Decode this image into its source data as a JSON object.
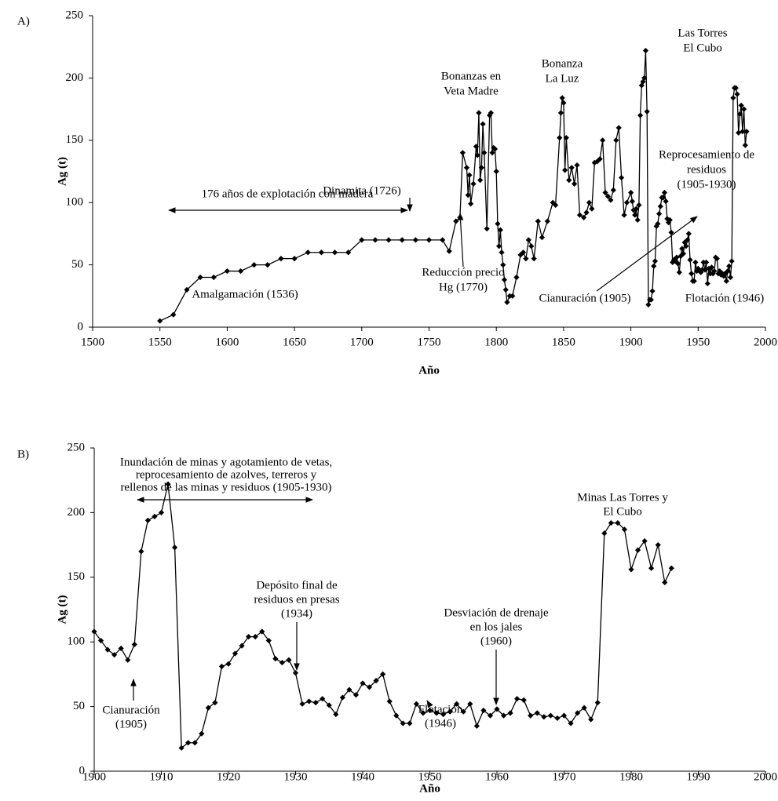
{
  "chart_data": [
    {
      "type": "line",
      "panel_label": "A)",
      "marker": "diamond",
      "color": "#000000",
      "xlabel": "Año",
      "ylabel": "Ag (t)",
      "xlim": [
        1500,
        2000
      ],
      "ylim": [
        0,
        250
      ],
      "xticks": [
        1500,
        1550,
        1600,
        1650,
        1700,
        1750,
        1800,
        1850,
        1900,
        1950,
        2000
      ],
      "yticks": [
        0,
        50,
        100,
        150,
        200,
        250
      ],
      "x": [
        1550,
        1560,
        1570,
        1580,
        1590,
        1600,
        1610,
        1620,
        1630,
        1640,
        1650,
        1660,
        1670,
        1680,
        1690,
        1700,
        1710,
        1720,
        1730,
        1740,
        1750,
        1760,
        1765,
        1770,
        1773,
        1775,
        1778,
        1779,
        1780,
        1781,
        1783,
        1785,
        1786,
        1787,
        1788,
        1789,
        1790,
        1791,
        1793,
        1795,
        1796,
        1797,
        1798,
        1799,
        1800,
        1801,
        1802,
        1803,
        1804,
        1805,
        1806,
        1807,
        1808,
        1810,
        1812,
        1815,
        1818,
        1820,
        1822,
        1824,
        1826,
        1828,
        1831,
        1834,
        1838,
        1842,
        1844,
        1847,
        1848,
        1849,
        1850,
        1851,
        1852,
        1854,
        1856,
        1858,
        1860,
        1862,
        1865,
        1867,
        1869,
        1871,
        1873,
        1875,
        1877,
        1879,
        1881,
        1883,
        1885,
        1887,
        1889,
        1891,
        1893,
        1895,
        1897,
        1900,
        1901,
        1902,
        1903,
        1904,
        1905,
        1906,
        1907,
        1908,
        1909,
        1910,
        1911,
        1912,
        1913,
        1914,
        1915,
        1916,
        1917,
        1918,
        1919,
        1920,
        1921,
        1922,
        1923,
        1924,
        1925,
        1926,
        1927,
        1928,
        1929,
        1930,
        1931,
        1932,
        1933,
        1934,
        1935,
        1936,
        1937,
        1938,
        1939,
        1940,
        1941,
        1942,
        1943,
        1944,
        1945,
        1946,
        1947,
        1948,
        1949,
        1950,
        1951,
        1952,
        1953,
        1954,
        1955,
        1956,
        1957,
        1958,
        1959,
        1960,
        1961,
        1962,
        1963,
        1964,
        1965,
        1966,
        1967,
        1968,
        1969,
        1970,
        1971,
        1972,
        1973,
        1974,
        1975,
        1976,
        1977,
        1978,
        1979,
        1980,
        1981,
        1982,
        1983,
        1984,
        1985,
        1986
      ],
      "values": [
        5,
        10,
        30,
        40,
        40,
        45,
        45,
        50,
        50,
        55,
        55,
        60,
        60,
        60,
        60,
        70,
        70,
        70,
        70,
        70,
        70,
        70,
        61,
        85,
        88,
        140,
        128,
        106,
        122,
        99,
        115,
        145,
        138,
        172,
        118,
        128,
        163,
        140,
        79,
        170,
        172,
        140,
        144,
        143,
        125,
        83,
        65,
        78,
        60,
        50,
        38,
        30,
        20,
        25,
        25,
        40,
        58,
        60,
        55,
        70,
        65,
        55,
        85,
        72,
        85,
        100,
        98,
        152,
        172,
        184,
        180,
        126,
        152,
        118,
        128,
        115,
        130,
        90,
        88,
        92,
        100,
        95,
        132,
        133,
        135,
        150,
        108,
        105,
        102,
        110,
        150,
        160,
        120,
        90,
        100,
        108,
        101,
        94,
        90,
        95,
        86,
        98,
        170,
        194,
        197,
        200,
        222,
        173,
        18,
        22,
        22,
        29,
        49,
        53,
        81,
        83,
        91,
        97,
        104,
        104,
        108,
        101,
        87,
        84,
        86,
        76,
        52,
        54,
        53,
        56,
        51,
        44,
        57,
        63,
        59,
        68,
        65,
        70,
        75,
        54,
        43,
        37,
        37,
        52,
        45,
        47,
        45,
        44,
        46,
        52,
        46,
        52,
        35,
        47,
        43,
        48,
        43,
        45,
        56,
        55,
        43,
        45,
        42,
        43,
        41,
        43,
        37,
        45,
        49,
        40,
        53,
        184,
        192,
        192,
        187,
        156,
        171,
        178,
        157,
        175,
        146,
        157
      ],
      "annotations": [
        {
          "lines": [
            "Dinamita (1726)"
          ]
        },
        {
          "lines": [
            "176 años de explotación con madera"
          ]
        },
        {
          "lines": [
            "Amalgamación (1536)"
          ]
        },
        {
          "lines": [
            "Reducción precio",
            "Hg (1770)"
          ]
        },
        {
          "lines": [
            "Bonanzas en",
            "Veta Madre"
          ]
        },
        {
          "lines": [
            "Bonanza",
            "La Luz"
          ]
        },
        {
          "lines": [
            "Cianuración (1905)"
          ]
        },
        {
          "lines": [
            "Reprocesamiento de",
            "residuos",
            "(1905-1930)"
          ]
        },
        {
          "lines": [
            "Las Torres",
            "El Cubo"
          ]
        },
        {
          "lines": [
            "Flotación (1946)"
          ]
        }
      ]
    },
    {
      "type": "line",
      "panel_label": "B)",
      "marker": "diamond",
      "color": "#000000",
      "xlabel": "Año",
      "ylabel": "Ag (t)",
      "xlim": [
        1900,
        2000
      ],
      "ylim": [
        0,
        250
      ],
      "xticks": [
        1900,
        1910,
        1920,
        1930,
        1940,
        1950,
        1960,
        1970,
        1980,
        1990,
        2000
      ],
      "yticks": [
        0,
        50,
        100,
        150,
        200,
        250
      ],
      "x": [
        1900,
        1901,
        1902,
        1903,
        1904,
        1905,
        1906,
        1907,
        1908,
        1909,
        1910,
        1911,
        1912,
        1913,
        1914,
        1915,
        1916,
        1917,
        1918,
        1919,
        1920,
        1921,
        1922,
        1923,
        1924,
        1925,
        1926,
        1927,
        1928,
        1929,
        1930,
        1931,
        1932,
        1933,
        1934,
        1935,
        1936,
        1937,
        1938,
        1939,
        1940,
        1941,
        1942,
        1943,
        1944,
        1945,
        1946,
        1947,
        1948,
        1949,
        1950,
        1951,
        1952,
        1953,
        1954,
        1955,
        1956,
        1957,
        1958,
        1959,
        1960,
        1961,
        1962,
        1963,
        1964,
        1965,
        1966,
        1967,
        1968,
        1969,
        1970,
        1971,
        1972,
        1973,
        1974,
        1975,
        1976,
        1977,
        1978,
        1979,
        1980,
        1981,
        1982,
        1983,
        1984,
        1985,
        1986
      ],
      "values": [
        108,
        101,
        94,
        90,
        95,
        86,
        98,
        170,
        194,
        197,
        200,
        222,
        173,
        18,
        22,
        22,
        29,
        49,
        53,
        81,
        83,
        91,
        97,
        104,
        104,
        108,
        101,
        87,
        84,
        86,
        76,
        52,
        54,
        53,
        56,
        51,
        44,
        57,
        63,
        59,
        68,
        65,
        70,
        75,
        54,
        43,
        37,
        37,
        52,
        45,
        47,
        45,
        44,
        46,
        52,
        46,
        52,
        35,
        47,
        43,
        48,
        43,
        45,
        56,
        55,
        43,
        45,
        42,
        43,
        41,
        43,
        37,
        45,
        49,
        40,
        53,
        184,
        192,
        192,
        187,
        156,
        171,
        178,
        157,
        175,
        146,
        157
      ],
      "annotations": [
        {
          "lines": [
            "Inundación de minas y agotamiento de vetas,",
            "reprocesamiento de azolves, terreros y",
            "rellenos de las minas y residuos (1905-1930)"
          ]
        },
        {
          "lines": [
            "Depósito final de",
            "residuos en presas",
            "(1934)"
          ]
        },
        {
          "lines": [
            "Desviación de drenaje",
            "en los jales",
            "(1960)"
          ]
        },
        {
          "lines": [
            "Minas Las Torres y",
            "El Cubo"
          ]
        },
        {
          "lines": [
            "Cianuración",
            "(1905)"
          ]
        },
        {
          "lines": [
            "Flotación",
            "(1946)"
          ]
        }
      ]
    }
  ]
}
